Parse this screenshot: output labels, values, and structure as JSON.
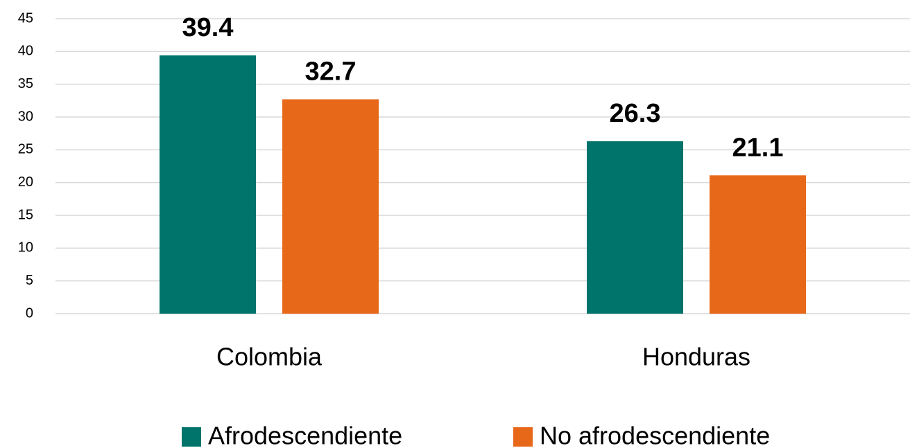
{
  "chart_data": {
    "type": "bar",
    "categories": [
      "Colombia",
      "Honduras"
    ],
    "series": [
      {
        "name": "Afrodescendiente",
        "color": "#00736a",
        "values": [
          39.4,
          26.3
        ]
      },
      {
        "name": "No afrodescendiente",
        "color": "#e8681a",
        "values": [
          32.7,
          21.1
        ]
      }
    ],
    "ylim": [
      0,
      45
    ],
    "yticks": [
      0,
      5,
      10,
      15,
      20,
      25,
      30,
      35,
      40,
      45
    ],
    "grid": true,
    "legend": "bottom"
  }
}
